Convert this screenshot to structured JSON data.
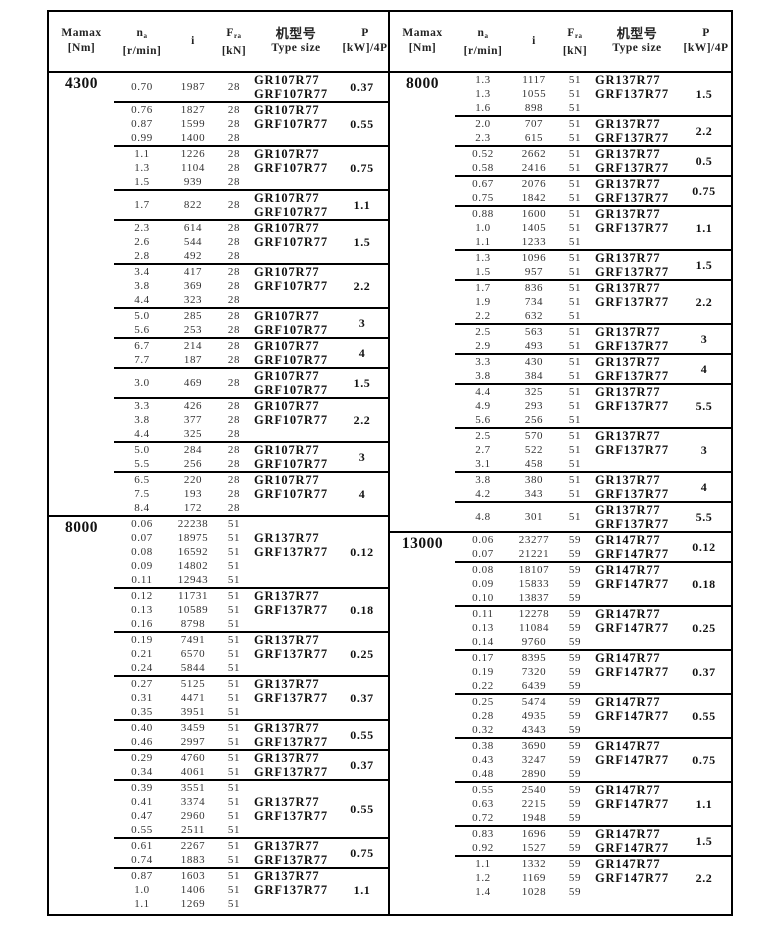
{
  "header": {
    "mamax": "Mamax",
    "mamax_unit": "[Nm]",
    "n": "n",
    "n_sub": "a",
    "n_unit": "[r/min]",
    "i": "i",
    "f": "F",
    "f_sub": "ra",
    "f_unit": "[kN]",
    "type_cn": "机型号",
    "type_en": "Type size",
    "p": "P",
    "p_unit": "[kW]/4P"
  },
  "left": [
    {
      "mamax": "4300",
      "types": [
        "GR107R77",
        "GRF107R77"
      ],
      "groups": [
        {
          "rows": [
            [
              "0.70",
              "1987",
              "28"
            ]
          ],
          "p": "0.37"
        },
        {
          "rows": [
            [
              "0.76",
              "1827",
              "28"
            ],
            [
              "0.87",
              "1599",
              "28"
            ],
            [
              "0.99",
              "1400",
              "28"
            ]
          ],
          "p": "0.55"
        },
        {
          "rows": [
            [
              "1.1",
              "1226",
              "28"
            ],
            [
              "1.3",
              "1104",
              "28"
            ],
            [
              "1.5",
              "939",
              "28"
            ]
          ],
          "p": "0.75"
        },
        {
          "rows": [
            [
              "1.7",
              "822",
              "28"
            ]
          ],
          "p": "1.1"
        },
        {
          "rows": [
            [
              "2.3",
              "614",
              "28"
            ],
            [
              "2.6",
              "544",
              "28"
            ],
            [
              "2.8",
              "492",
              "28"
            ]
          ],
          "p": "1.5"
        },
        {
          "rows": [
            [
              "3.4",
              "417",
              "28"
            ],
            [
              "3.8",
              "369",
              "28"
            ],
            [
              "4.4",
              "323",
              "28"
            ]
          ],
          "p": "2.2"
        },
        {
          "rows": [
            [
              "5.0",
              "285",
              "28"
            ],
            [
              "5.6",
              "253",
              "28"
            ]
          ],
          "p": "3"
        },
        {
          "rows": [
            [
              "6.7",
              "214",
              "28"
            ],
            [
              "7.7",
              "187",
              "28"
            ]
          ],
          "p": "4"
        },
        {
          "rows": [
            [
              "3.0",
              "469",
              "28"
            ]
          ],
          "p": "1.5"
        },
        {
          "rows": [
            [
              "3.3",
              "426",
              "28"
            ],
            [
              "3.8",
              "377",
              "28"
            ],
            [
              "4.4",
              "325",
              "28"
            ]
          ],
          "p": "2.2"
        },
        {
          "rows": [
            [
              "5.0",
              "284",
              "28"
            ],
            [
              "5.5",
              "256",
              "28"
            ]
          ],
          "p": "3"
        },
        {
          "rows": [
            [
              "6.5",
              "220",
              "28"
            ],
            [
              "7.5",
              "193",
              "28"
            ],
            [
              "8.4",
              "172",
              "28"
            ]
          ],
          "p": "4"
        }
      ]
    },
    {
      "mamax": "8000",
      "types": [
        "GR137R77",
        "GRF137R77"
      ],
      "groups": [
        {
          "rows": [
            [
              "0.06",
              "22238",
              "51"
            ],
            [
              "0.07",
              "18975",
              "51"
            ],
            [
              "0.08",
              "16592",
              "51"
            ],
            [
              "0.09",
              "14802",
              "51"
            ],
            [
              "0.11",
              "12943",
              "51"
            ]
          ],
          "p": "0.12"
        },
        {
          "rows": [
            [
              "0.12",
              "11731",
              "51"
            ],
            [
              "0.13",
              "10589",
              "51"
            ],
            [
              "0.16",
              "8798",
              "51"
            ]
          ],
          "p": "0.18"
        },
        {
          "rows": [
            [
              "0.19",
              "7491",
              "51"
            ],
            [
              "0.21",
              "6570",
              "51"
            ],
            [
              "0.24",
              "5844",
              "51"
            ]
          ],
          "p": "0.25"
        },
        {
          "rows": [
            [
              "0.27",
              "5125",
              "51"
            ],
            [
              "0.31",
              "4471",
              "51"
            ],
            [
              "0.35",
              "3951",
              "51"
            ]
          ],
          "p": "0.37"
        },
        {
          "rows": [
            [
              "0.40",
              "3459",
              "51"
            ],
            [
              "0.46",
              "2997",
              "51"
            ]
          ],
          "p": "0.55"
        },
        {
          "rows": [
            [
              "0.29",
              "4760",
              "51"
            ],
            [
              "0.34",
              "4061",
              "51"
            ]
          ],
          "p": "0.37"
        },
        {
          "rows": [
            [
              "0.39",
              "3551",
              "51"
            ],
            [
              "0.41",
              "3374",
              "51"
            ],
            [
              "0.47",
              "2960",
              "51"
            ],
            [
              "0.55",
              "2511",
              "51"
            ]
          ],
          "p": "0.55"
        },
        {
          "rows": [
            [
              "0.61",
              "2267",
              "51"
            ],
            [
              "0.74",
              "1883",
              "51"
            ]
          ],
          "p": "0.75"
        },
        {
          "rows": [
            [
              "0.87",
              "1603",
              "51"
            ],
            [
              "1.0",
              "1406",
              "51"
            ],
            [
              "1.1",
              "1269",
              "51"
            ]
          ],
          "p": "1.1"
        }
      ]
    }
  ],
  "right": [
    {
      "mamax": "8000",
      "types": [
        "GR137R77",
        "GRF137R77"
      ],
      "groups": [
        {
          "rows": [
            [
              "1.3",
              "1117",
              "51"
            ],
            [
              "1.3",
              "1055",
              "51"
            ],
            [
              "1.6",
              "898",
              "51"
            ]
          ],
          "p": "1.5"
        },
        {
          "rows": [
            [
              "2.0",
              "707",
              "51"
            ],
            [
              "2.3",
              "615",
              "51"
            ]
          ],
          "p": "2.2"
        },
        {
          "rows": [
            [
              "0.52",
              "2662",
              "51"
            ],
            [
              "0.58",
              "2416",
              "51"
            ]
          ],
          "p": "0.5"
        },
        {
          "rows": [
            [
              "0.67",
              "2076",
              "51"
            ],
            [
              "0.75",
              "1842",
              "51"
            ]
          ],
          "p": "0.75"
        },
        {
          "rows": [
            [
              "0.88",
              "1600",
              "51"
            ],
            [
              "1.0",
              "1405",
              "51"
            ],
            [
              "1.1",
              "1233",
              "51"
            ]
          ],
          "p": "1.1"
        },
        {
          "rows": [
            [
              "1.3",
              "1096",
              "51"
            ],
            [
              "1.5",
              "957",
              "51"
            ]
          ],
          "p": "1.5"
        },
        {
          "rows": [
            [
              "1.7",
              "836",
              "51"
            ],
            [
              "1.9",
              "734",
              "51"
            ],
            [
              "2.2",
              "632",
              "51"
            ]
          ],
          "p": "2.2"
        },
        {
          "rows": [
            [
              "2.5",
              "563",
              "51"
            ],
            [
              "2.9",
              "493",
              "51"
            ]
          ],
          "p": "3"
        },
        {
          "rows": [
            [
              "3.3",
              "430",
              "51"
            ],
            [
              "3.8",
              "384",
              "51"
            ]
          ],
          "p": "4"
        },
        {
          "rows": [
            [
              "4.4",
              "325",
              "51"
            ],
            [
              "4.9",
              "293",
              "51"
            ],
            [
              "5.6",
              "256",
              "51"
            ]
          ],
          "p": "5.5"
        },
        {
          "rows": [
            [
              "2.5",
              "570",
              "51"
            ],
            [
              "2.7",
              "522",
              "51"
            ],
            [
              "3.1",
              "458",
              "51"
            ]
          ],
          "p": "3"
        },
        {
          "rows": [
            [
              "3.8",
              "380",
              "51"
            ],
            [
              "4.2",
              "343",
              "51"
            ]
          ],
          "p": "4"
        },
        {
          "rows": [
            [
              "4.8",
              "301",
              "51"
            ]
          ],
          "p": "5.5"
        }
      ]
    },
    {
      "mamax": "13000",
      "types": [
        "GR147R77",
        "GRF147R77"
      ],
      "groups": [
        {
          "rows": [
            [
              "0.06",
              "23277",
              "59"
            ],
            [
              "0.07",
              "21221",
              "59"
            ]
          ],
          "p": "0.12"
        },
        {
          "rows": [
            [
              "0.08",
              "18107",
              "59"
            ],
            [
              "0.09",
              "15833",
              "59"
            ],
            [
              "0.10",
              "13837",
              "59"
            ]
          ],
          "p": "0.18"
        },
        {
          "rows": [
            [
              "0.11",
              "12278",
              "59"
            ],
            [
              "0.13",
              "11084",
              "59"
            ],
            [
              "0.14",
              "9760",
              "59"
            ]
          ],
          "p": "0.25"
        },
        {
          "rows": [
            [
              "0.17",
              "8395",
              "59"
            ],
            [
              "0.19",
              "7320",
              "59"
            ],
            [
              "0.22",
              "6439",
              "59"
            ]
          ],
          "p": "0.37"
        },
        {
          "rows": [
            [
              "0.25",
              "5474",
              "59"
            ],
            [
              "0.28",
              "4935",
              "59"
            ],
            [
              "0.32",
              "4343",
              "59"
            ]
          ],
          "p": "0.55"
        },
        {
          "rows": [
            [
              "0.38",
              "3690",
              "59"
            ],
            [
              "0.43",
              "3247",
              "59"
            ],
            [
              "0.48",
              "2890",
              "59"
            ]
          ],
          "p": "0.75"
        },
        {
          "rows": [
            [
              "0.55",
              "2540",
              "59"
            ],
            [
              "0.63",
              "2215",
              "59"
            ],
            [
              "0.72",
              "1948",
              "59"
            ]
          ],
          "p": "1.1"
        },
        {
          "rows": [
            [
              "0.83",
              "1696",
              "59"
            ],
            [
              "0.92",
              "1527",
              "59"
            ]
          ],
          "p": "1.5"
        },
        {
          "rows": [
            [
              "1.1",
              "1332",
              "59"
            ],
            [
              "1.2",
              "1169",
              "59"
            ],
            [
              "1.4",
              "1028",
              "59"
            ]
          ],
          "p": "2.2"
        }
      ]
    }
  ]
}
